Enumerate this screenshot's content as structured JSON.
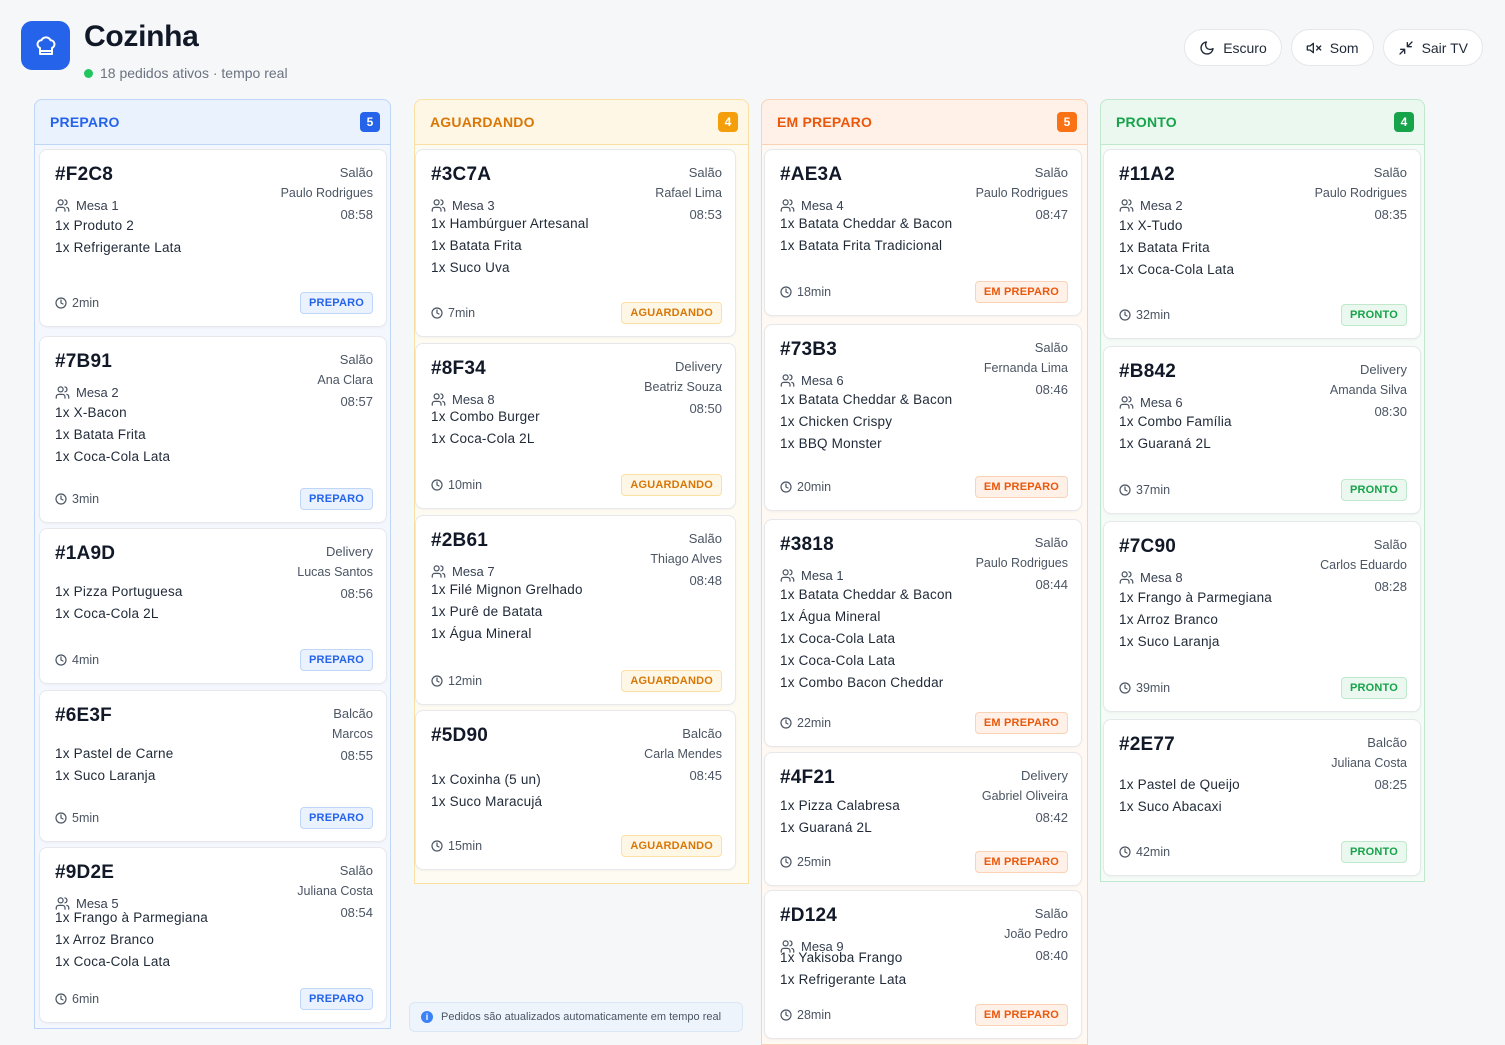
{
  "header": {
    "title": "Cozinha",
    "subtitle": "18 pedidos ativos · tempo real",
    "buttons": {
      "dark": "Escuro",
      "sound": "Som",
      "exit_tv": "Sair TV"
    }
  },
  "columns": [
    {
      "id": "preparo",
      "title": "PREPARO",
      "count": "5",
      "badge": "PREPARO",
      "colors": {
        "text": "#2563eb",
        "head_bg": "#eaf2fd",
        "border": "#bfd6f6",
        "body_bg": "#f4f8fe",
        "count_bg": "#2563eb",
        "badge_bg": "#eaf2fd",
        "badge_border": "#bfd6f6"
      },
      "orders": [
        {
          "id": "#F2C8",
          "type": "Salão",
          "waiter": "Paulo Rodrigues",
          "time": "08:58",
          "table": "Mesa 1",
          "items": [
            "1x Produto 2",
            "1x Refrigerante Lata"
          ],
          "elapsed": "2min"
        },
        {
          "id": "#7B91",
          "type": "Salão",
          "waiter": "Ana Clara",
          "time": "08:57",
          "table": "Mesa 2",
          "items": [
            "1x X-Bacon",
            "1x Batata Frita",
            "1x Coca-Cola Lata"
          ],
          "elapsed": "3min"
        },
        {
          "id": "#1A9D",
          "type": "Delivery",
          "waiter": "Lucas Santos",
          "time": "08:56",
          "table": "",
          "items": [
            "1x Pizza Portuguesa",
            "1x Coca-Cola 2L"
          ],
          "elapsed": "4min"
        },
        {
          "id": "#6E3F",
          "type": "Balcão",
          "waiter": "Marcos",
          "time": "08:55",
          "table": "",
          "items": [
            "1x Pastel de Carne",
            "1x Suco Laranja"
          ],
          "elapsed": "5min"
        },
        {
          "id": "#9D2E",
          "type": "Salão",
          "waiter": "Juliana Costa",
          "time": "08:54",
          "table": "Mesa 5",
          "items": [
            "1x Frango à Parmegiana",
            "1x Arroz Branco",
            "1x Coca-Cola Lata"
          ],
          "elapsed": "6min"
        }
      ]
    },
    {
      "id": "aguardando",
      "title": "AGUARDANDO",
      "count": "4",
      "badge": "AGUARDANDO",
      "colors": {
        "text": "#d97706",
        "head_bg": "#fef7e6",
        "border": "#fbe0a3",
        "body_bg": "#fefbf3",
        "count_bg": "#f59e0b",
        "badge_bg": "#fef7e6",
        "badge_border": "#fbe0a3"
      },
      "orders": [
        {
          "id": "#3C7A",
          "type": "Salão",
          "waiter": "Rafael Lima",
          "time": "08:53",
          "table": "Mesa 3",
          "items": [
            "1x Hambúrguer Artesanal",
            "1x Batata Frita",
            "1x Suco Uva"
          ],
          "elapsed": "7min"
        },
        {
          "id": "#8F34",
          "type": "Delivery",
          "waiter": "Beatriz Souza",
          "time": "08:50",
          "table": "Mesa 8",
          "items": [
            "1x Combo Burger",
            "1x Coca-Cola 2L"
          ],
          "elapsed": "10min"
        },
        {
          "id": "#2B61",
          "type": "Salão",
          "waiter": "Thiago Alves",
          "time": "08:48",
          "table": "Mesa 7",
          "items": [
            "1x Filé Mignon Grelhado",
            "1x Purê de Batata",
            "1x Água Mineral"
          ],
          "elapsed": "12min"
        },
        {
          "id": "#5D90",
          "type": "Balcão",
          "waiter": "Carla Mendes",
          "time": "08:45",
          "table": "",
          "items": [
            "1x Coxinha (5 un)",
            "1x Suco Maracujá"
          ],
          "elapsed": "15min"
        }
      ]
    },
    {
      "id": "em-preparo",
      "title": "EM PREPARO",
      "count": "5",
      "badge": "EM PREPARO",
      "colors": {
        "text": "#ea580c",
        "head_bg": "#fff1e8",
        "border": "#fbd2b5",
        "body_bg": "#fff8f3",
        "count_bg": "#f97316",
        "badge_bg": "#fff1e8",
        "badge_border": "#fbd2b5"
      },
      "orders": [
        {
          "id": "#AE3A",
          "type": "Salão",
          "waiter": "Paulo Rodrigues",
          "time": "08:47",
          "table": "Mesa 4",
          "items": [
            "1x Batata Cheddar & Bacon",
            "1x Batata Frita Tradicional"
          ],
          "elapsed": "18min"
        },
        {
          "id": "#73B3",
          "type": "Salão",
          "waiter": "Fernanda Lima",
          "time": "08:46",
          "table": "Mesa 6",
          "items": [
            "1x Batata Cheddar & Bacon",
            "1x Chicken Crispy",
            "1x BBQ Monster"
          ],
          "elapsed": "20min"
        },
        {
          "id": "#3818",
          "type": "Salão",
          "waiter": "Paulo Rodrigues",
          "time": "08:44",
          "table": "Mesa 1",
          "items": [
            "1x Batata Cheddar & Bacon",
            "1x Água Mineral",
            "1x Coca-Cola Lata",
            "1x Coca-Cola Lata",
            "1x Combo Bacon Cheddar"
          ],
          "elapsed": "22min"
        },
        {
          "id": "#4F21",
          "type": "Delivery",
          "waiter": "Gabriel Oliveira",
          "time": "08:42",
          "table": "",
          "items": [
            "1x Pizza Calabresa",
            "1x Guaraná 2L"
          ],
          "elapsed": "25min"
        },
        {
          "id": "#D124",
          "type": "Salão",
          "waiter": "João Pedro",
          "time": "08:40",
          "table": "Mesa 9",
          "items": [
            "1x Yakisoba Frango",
            "1x Refrigerante Lata"
          ],
          "elapsed": "28min"
        }
      ]
    },
    {
      "id": "pronto",
      "title": "PRONTO",
      "count": "4",
      "badge": "PRONTO",
      "colors": {
        "text": "#16a34a",
        "head_bg": "#ebf8ef",
        "border": "#bfe8cc",
        "body_bg": "#f5fbf7",
        "count_bg": "#16a34a",
        "badge_bg": "#ebf8ef",
        "badge_border": "#bfe8cc"
      },
      "orders": [
        {
          "id": "#11A2",
          "type": "Salão",
          "waiter": "Paulo Rodrigues",
          "time": "08:35",
          "table": "Mesa 2",
          "items": [
            "1x X-Tudo",
            "1x Batata Frita",
            "1x Coca-Cola Lata"
          ],
          "elapsed": "32min"
        },
        {
          "id": "#B842",
          "type": "Delivery",
          "waiter": "Amanda Silva",
          "time": "08:30",
          "table": "Mesa 6",
          "items": [
            "1x Combo Família",
            "1x Guaraná 2L"
          ],
          "elapsed": "37min"
        },
        {
          "id": "#7C90",
          "type": "Salão",
          "waiter": "Carlos Eduardo",
          "time": "08:28",
          "table": "Mesa 8",
          "items": [
            "1x Frango à Parmegiana",
            "1x Arroz Branco",
            "1x Suco Laranja"
          ],
          "elapsed": "39min"
        },
        {
          "id": "#2E77",
          "type": "Balcão",
          "waiter": "Juliana Costa",
          "time": "08:25",
          "table": "",
          "items": [
            "1x Pastel de Queijo",
            "1x Suco Abacaxi"
          ],
          "elapsed": "42min"
        }
      ]
    }
  ],
  "info": {
    "text": "Pedidos são atualizados automaticamente em tempo real",
    "icon": "info-icon"
  }
}
